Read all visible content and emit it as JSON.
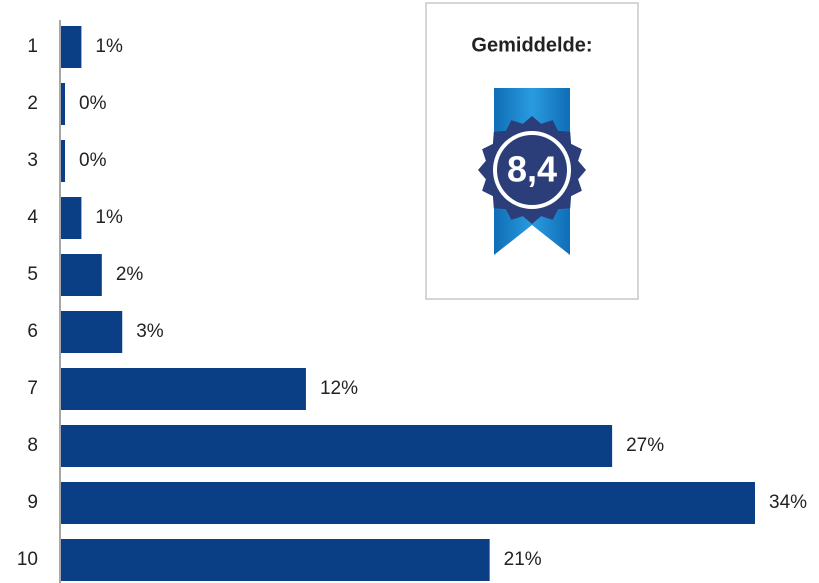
{
  "chart_data": {
    "type": "bar",
    "orientation": "horizontal",
    "categories": [
      "1",
      "2",
      "3",
      "4",
      "5",
      "6",
      "7",
      "8",
      "9",
      "10"
    ],
    "values": [
      1,
      0,
      0,
      1,
      2,
      3,
      12,
      27,
      34,
      21
    ],
    "value_labels": [
      "1%",
      "0%",
      "0%",
      "1%",
      "2%",
      "3%",
      "12%",
      "27%",
      "34%",
      "21%"
    ],
    "color": "#0a3f86",
    "xlim": [
      0,
      34
    ],
    "annotations": {
      "title": "Gemiddelde:",
      "badge": "8,4"
    }
  }
}
